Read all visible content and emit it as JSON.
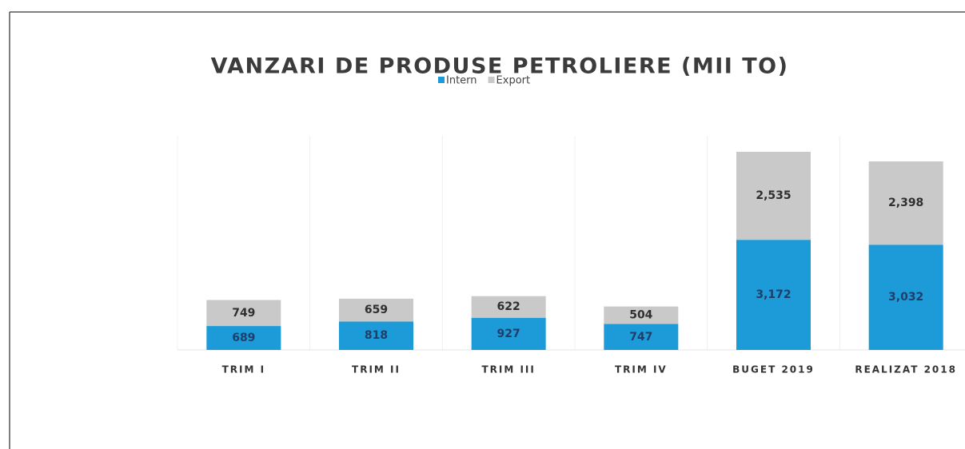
{
  "chart_data": {
    "type": "stacked_bar",
    "title": "VANZARI  DE PRODUSE PETROLIERE (MII TO)",
    "categories": [
      "TRIM I",
      "TRIM II",
      "TRIM III",
      "TRIM IV",
      "BUGET 2019",
      "REALIZAT 2018"
    ],
    "series": [
      {
        "name": "Intern",
        "color": "#1c9bd8",
        "values": [
          689,
          818,
          927,
          747,
          3172,
          3032
        ],
        "value_labels": [
          "689",
          "818",
          "927",
          "747",
          "3,172",
          "3,032"
        ]
      },
      {
        "name": "Export",
        "color": "#c9c9c9",
        "values": [
          749,
          659,
          622,
          504,
          2535,
          2398
        ],
        "value_labels": [
          "749",
          "659",
          "622",
          "504",
          "2,535",
          "2,398"
        ]
      }
    ],
    "legend": "top"
  }
}
